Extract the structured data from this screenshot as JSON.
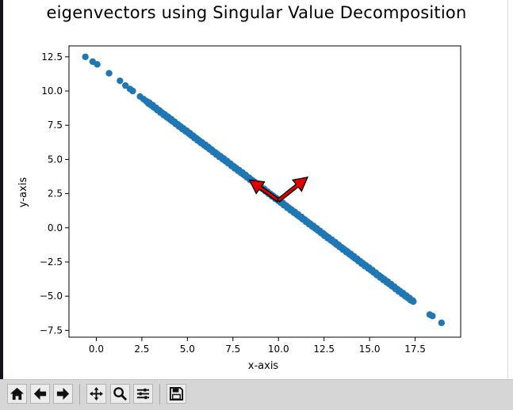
{
  "window": {
    "figure_bg": "#ffffff",
    "toolbar_bg": "#d6d6d6"
  },
  "chart_data": {
    "type": "scatter",
    "title": "eigenvectors using Singular Value Decomposition",
    "xlabel": "x-axis",
    "ylabel": "y-axis",
    "xlim": [
      -1.5,
      20.0
    ],
    "ylim": [
      -8.0,
      13.3
    ],
    "xticks": [
      0.0,
      2.5,
      5.0,
      7.5,
      10.0,
      12.5,
      15.0,
      17.5
    ],
    "yticks": [
      -7.5,
      -5.0,
      -2.5,
      0.0,
      2.5,
      5.0,
      7.5,
      10.0,
      12.5
    ],
    "xtick_labels": [
      "0.0",
      "2.5",
      "5.0",
      "7.5",
      "10.0",
      "12.5",
      "15.0",
      "17.5"
    ],
    "ytick_labels": [
      "−7.5",
      "−5.0",
      "−2.5",
      "0.0",
      "2.5",
      "5.0",
      "7.5",
      "10.0",
      "12.5"
    ],
    "grid": false,
    "series": [
      {
        "color": "#1f77b4",
        "line": {
          "slope": -1.0,
          "intercept": 12.0
        },
        "x": [
          -0.6,
          -0.2,
          0.05,
          0.7,
          1.3,
          1.6,
          1.85,
          2.0,
          2.4,
          2.6,
          2.75,
          3.0,
          3.3,
          3.6,
          3.9,
          4.2,
          4.5,
          4.8,
          5.1,
          5.4,
          5.7,
          6.0,
          6.3,
          6.6,
          6.9,
          7.2,
          7.5,
          7.8,
          8.1,
          8.4,
          8.7,
          9.0,
          9.3,
          9.6,
          9.9,
          10.2,
          10.5,
          10.8,
          11.1,
          11.4,
          11.7,
          12.0,
          12.3,
          12.6,
          12.9,
          13.2,
          13.5,
          13.8,
          14.1,
          14.4,
          14.7,
          15.0,
          15.3,
          15.6,
          15.9,
          16.2,
          16.5,
          16.8,
          17.1,
          17.4,
          18.3,
          18.45,
          18.95
        ],
        "y": [
          12.5,
          12.15,
          11.95,
          11.3,
          10.75,
          10.4,
          10.15,
          10.0,
          9.6,
          9.4,
          9.25,
          9.0,
          8.7,
          8.4,
          8.1,
          7.8,
          7.5,
          7.2,
          6.9,
          6.6,
          6.3,
          6.0,
          5.7,
          5.4,
          5.1,
          4.8,
          4.5,
          4.2,
          3.9,
          3.6,
          3.3,
          3.0,
          2.7,
          2.4,
          2.1,
          1.8,
          1.5,
          1.2,
          0.9,
          0.6,
          0.3,
          0.0,
          -0.3,
          -0.6,
          -0.9,
          -1.2,
          -1.5,
          -1.8,
          -2.1,
          -2.4,
          -2.7,
          -3.0,
          -3.3,
          -3.6,
          -3.9,
          -4.2,
          -4.5,
          -4.8,
          -5.1,
          -5.4,
          -6.35,
          -6.45,
          -6.95
        ]
      }
    ],
    "eigenvectors": {
      "origin": [
        10.0,
        2.0
      ],
      "color": "#e00000",
      "edge_color": "#000000",
      "vectors": [
        {
          "dx": -1.6,
          "dy": 1.5
        },
        {
          "dx": 1.6,
          "dy": 1.7
        }
      ]
    }
  },
  "toolbar": {
    "buttons": [
      "home-icon",
      "back-arrow-icon",
      "forward-arrow-icon",
      "pan-icon",
      "zoom-icon",
      "configure-subplots-icon",
      "save-icon"
    ]
  }
}
